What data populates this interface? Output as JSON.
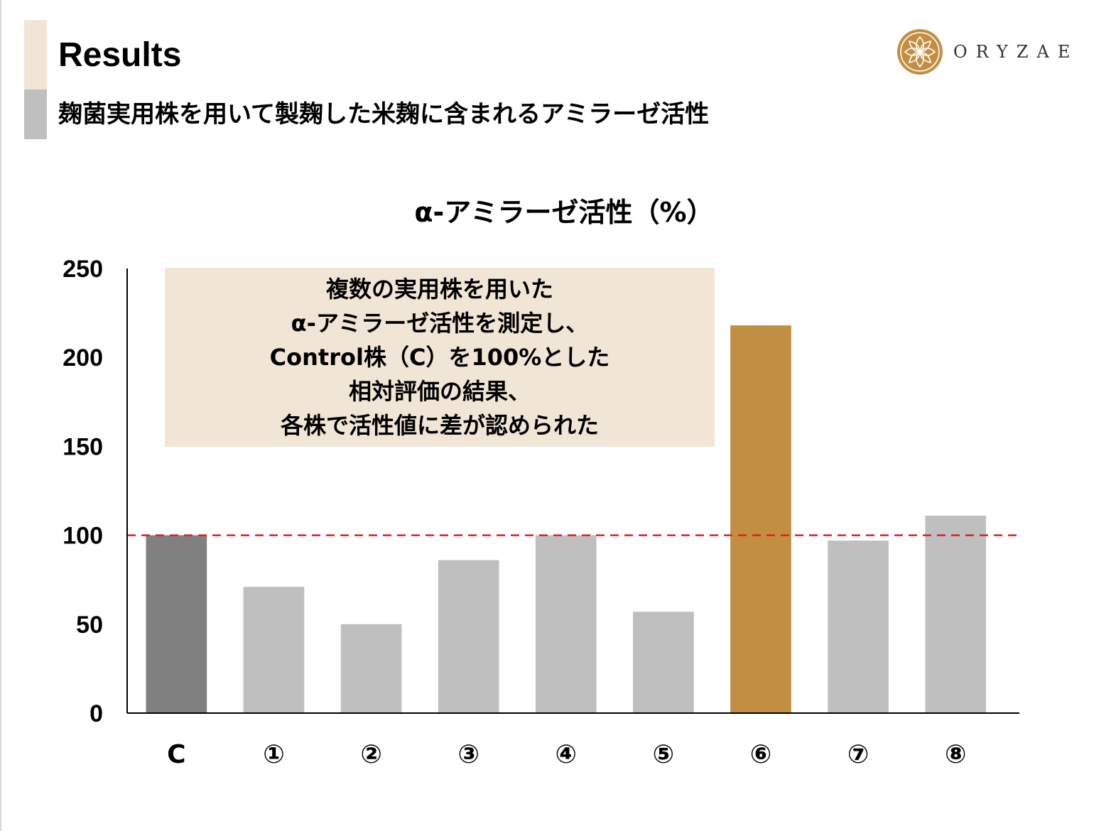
{
  "header": {
    "title": "Results",
    "subtitle": "麹菌実用株を用いて製麹した米麹に含まれるアミラーゼ活性"
  },
  "logo": {
    "text": "ORYZAE"
  },
  "annotation": {
    "lines": [
      "複数の実用株を用いた",
      "α-アミラーゼ活性を測定し、",
      "Control株（C）を100%とした",
      "相対評価の結果、",
      "各株で活性値に差が認められた"
    ]
  },
  "colors": {
    "control_bar": "#808080",
    "default_bar": "#bfbfbf",
    "highlight_bar": "#c28f42",
    "reference_line": "#e02020",
    "accent_beige": "#f1e5d6",
    "accent_gray": "#bfbfbf"
  },
  "chart_data": {
    "type": "bar",
    "title": "α-アミラーゼ活性（%）",
    "xlabel": "",
    "ylabel": "",
    "ylim": [
      0,
      250
    ],
    "yticks": [
      "0",
      "50",
      "100",
      "150",
      "200",
      "250"
    ],
    "categories": [
      "C",
      "①",
      "②",
      "③",
      "④",
      "⑤",
      "⑥",
      "⑦",
      "⑧"
    ],
    "values": [
      100,
      71,
      50,
      86,
      100,
      57,
      218,
      97,
      111
    ],
    "reference_line": 100,
    "grid": false,
    "legend": "none",
    "highlight_category": "⑥",
    "control_category": "C"
  }
}
